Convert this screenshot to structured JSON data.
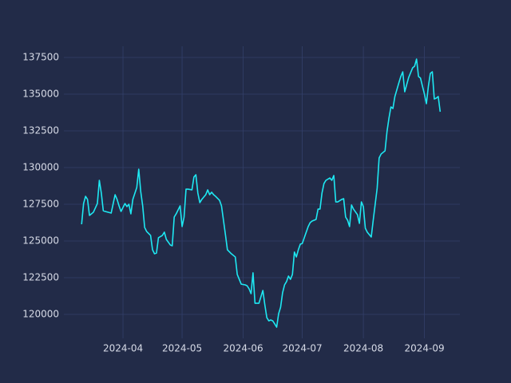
{
  "chart_data": {
    "type": "line",
    "grid": true,
    "x": [
      "2024-03-11",
      "2024-03-12",
      "2024-03-13",
      "2024-03-14",
      "2024-03-15",
      "2024-03-16",
      "2024-03-17",
      "2024-03-19",
      "2024-03-20",
      "2024-03-21",
      "2024-03-22",
      "2024-03-23",
      "2024-03-26",
      "2024-03-28",
      "2024-03-29",
      "2024-03-30",
      "2024-03-31",
      "2024-04-02",
      "2024-04-03",
      "2024-04-04",
      "2024-04-05",
      "2024-04-06",
      "2024-04-08",
      "2024-04-09",
      "2024-04-10",
      "2024-04-11",
      "2024-04-12",
      "2024-04-13",
      "2024-04-15",
      "2024-04-16",
      "2024-04-17",
      "2024-04-18",
      "2024-04-19",
      "2024-04-21",
      "2024-04-22",
      "2024-04-23",
      "2024-04-25",
      "2024-04-26",
      "2024-04-27",
      "2024-04-28",
      "2024-04-30",
      "2024-05-01",
      "2024-05-02",
      "2024-05-03",
      "2024-05-04",
      "2024-05-06",
      "2024-05-07",
      "2024-05-08",
      "2024-05-09",
      "2024-05-10",
      "2024-05-11",
      "2024-05-13",
      "2024-05-14",
      "2024-05-15",
      "2024-05-16",
      "2024-05-17",
      "2024-05-18",
      "2024-05-20",
      "2024-05-21",
      "2024-05-22",
      "2024-05-23",
      "2024-05-24",
      "2024-05-26",
      "2024-05-28",
      "2024-05-29",
      "2024-05-31",
      "2024-06-02",
      "2024-06-03",
      "2024-06-04",
      "2024-06-05",
      "2024-06-06",
      "2024-06-07",
      "2024-06-08",
      "2024-06-09",
      "2024-06-11",
      "2024-06-12",
      "2024-06-13",
      "2024-06-14",
      "2024-06-15",
      "2024-06-16",
      "2024-06-17",
      "2024-06-18",
      "2024-06-19",
      "2024-06-20",
      "2024-06-21",
      "2024-06-22",
      "2024-06-23",
      "2024-06-24",
      "2024-06-25",
      "2024-06-26",
      "2024-06-27",
      "2024-06-28",
      "2024-06-29",
      "2024-06-30",
      "2024-07-01",
      "2024-07-03",
      "2024-07-04",
      "2024-07-05",
      "2024-07-06",
      "2024-07-08",
      "2024-07-09",
      "2024-07-10",
      "2024-07-11",
      "2024-07-12",
      "2024-07-13",
      "2024-07-15",
      "2024-07-16",
      "2024-07-17",
      "2024-07-18",
      "2024-07-19",
      "2024-07-21",
      "2024-07-22",
      "2024-07-23",
      "2024-07-24",
      "2024-07-25",
      "2024-07-26",
      "2024-07-27",
      "2024-07-29",
      "2024-07-30",
      "2024-07-31",
      "2024-08-01",
      "2024-08-02",
      "2024-08-03",
      "2024-08-05",
      "2024-08-06",
      "2024-08-08",
      "2024-08-09",
      "2024-08-10",
      "2024-08-12",
      "2024-08-13",
      "2024-08-14",
      "2024-08-15",
      "2024-08-16",
      "2024-08-17",
      "2024-08-19",
      "2024-08-20",
      "2024-08-21",
      "2024-08-22",
      "2024-08-23",
      "2024-08-24",
      "2024-08-26",
      "2024-08-27",
      "2024-08-28",
      "2024-08-29",
      "2024-08-30",
      "2024-08-31",
      "2024-09-01",
      "2024-09-02",
      "2024-09-03",
      "2024-09-04",
      "2024-09-05",
      "2024-09-06",
      "2024-09-07",
      "2024-09-08",
      "2024-09-09"
    ],
    "series": [
      {
        "color": "#1ee8f2",
        "values": [
          126140,
          127550,
          128040,
          127830,
          126740,
          126850,
          126960,
          127550,
          129130,
          128260,
          127060,
          127010,
          126900,
          128150,
          127830,
          127390,
          127010,
          127550,
          127340,
          127500,
          126850,
          127830,
          128640,
          129890,
          128370,
          127390,
          125920,
          125650,
          125380,
          124400,
          124130,
          124180,
          125220,
          125380,
          125600,
          125110,
          124730,
          124670,
          126630,
          126850,
          127390,
          125980,
          126630,
          128530,
          128530,
          128480,
          129350,
          129510,
          128260,
          127610,
          127830,
          128150,
          128480,
          128150,
          128320,
          128150,
          128040,
          127770,
          127390,
          126410,
          125430,
          124400,
          124130,
          123910,
          122720,
          122060,
          122010,
          121950,
          121740,
          121410,
          122830,
          120760,
          120760,
          120760,
          121630,
          120650,
          119780,
          119560,
          119620,
          119560,
          119350,
          119130,
          120050,
          120490,
          121470,
          122010,
          122230,
          122610,
          122390,
          122720,
          124240,
          123910,
          124400,
          124780,
          124830,
          125600,
          125980,
          126250,
          126360,
          126470,
          127170,
          127170,
          128260,
          128910,
          129130,
          129290,
          129130,
          129460,
          127660,
          127660,
          127830,
          127880,
          126630,
          126410,
          125980,
          127450,
          127170,
          126790,
          126200,
          127660,
          127340,
          125870,
          125600,
          125270,
          126410,
          128590,
          130650,
          130920,
          131140,
          132450,
          133370,
          134130,
          134020,
          134840,
          135760,
          136200,
          136520,
          135160,
          135650,
          136140,
          136790,
          136900,
          137390,
          136200,
          136090,
          135540,
          135000,
          134350,
          135540,
          136410,
          136520,
          134670,
          134730,
          134840,
          133800
        ]
      }
    ],
    "xlim": [
      "2024-03-02",
      "2024-09-19"
    ],
    "xticks": [
      {
        "value": "2024-04-01",
        "label": "2024-04"
      },
      {
        "value": "2024-05-01",
        "label": "2024-05"
      },
      {
        "value": "2024-06-01",
        "label": "2024-06"
      },
      {
        "value": "2024-07-01",
        "label": "2024-07"
      },
      {
        "value": "2024-08-01",
        "label": "2024-08"
      },
      {
        "value": "2024-09-01",
        "label": "2024-09"
      }
    ],
    "ylim": [
      118370,
      138260
    ],
    "yticks": [
      120000,
      122500,
      125000,
      127500,
      130000,
      132500,
      135000,
      137500
    ]
  }
}
